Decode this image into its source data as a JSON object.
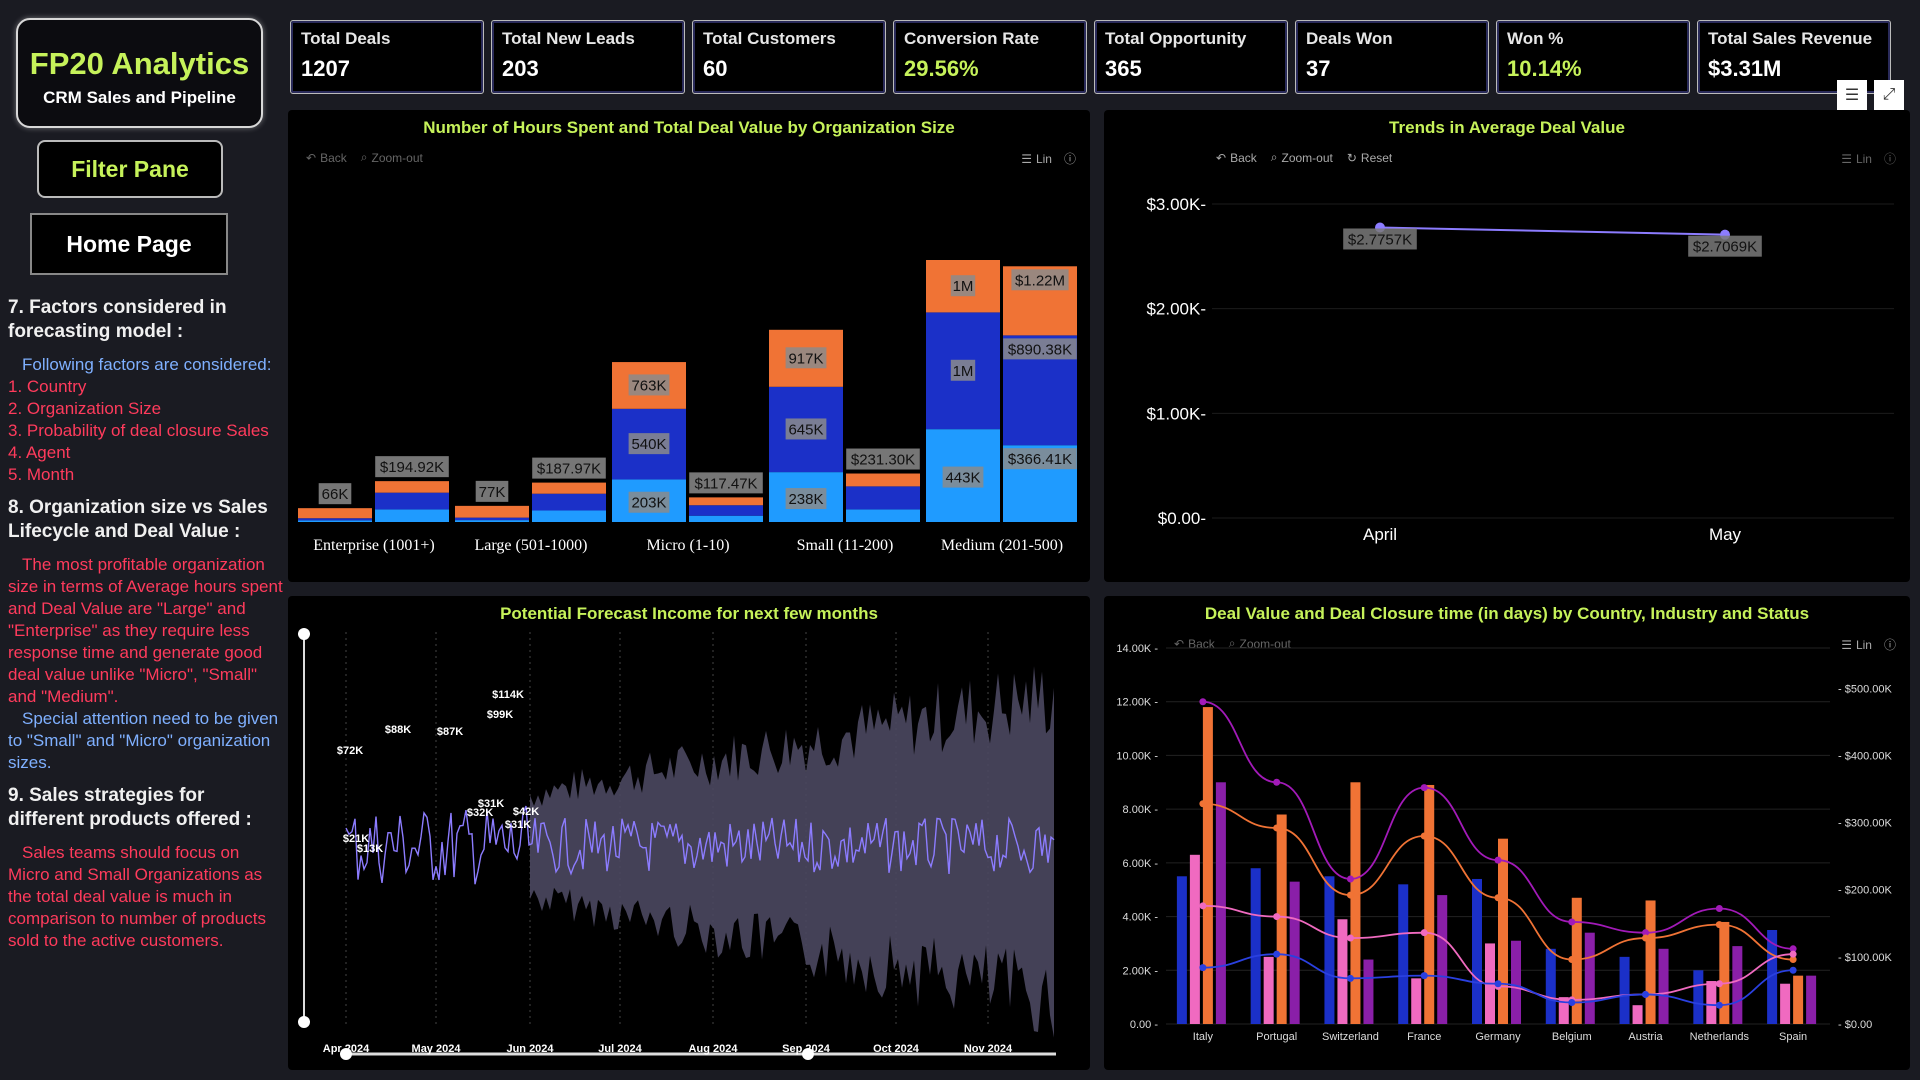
{
  "brand": {
    "title": "FP20 Analytics",
    "subtitle": "CRM Sales and Pipeline"
  },
  "nav": {
    "filter_pane": "Filter Pane",
    "home_page": "Home Page"
  },
  "notes": {
    "s7_title": "7. Factors considered in forecasting model :",
    "s7_intro": "Following factors are considered:",
    "s7_items": [
      "1. Country",
      "2. Organization Size",
      "3. Probability of deal closure Sales",
      "4. Agent",
      "5. Month"
    ],
    "s8_title": "8. Organization size vs Sales Lifecycle and Deal Value :",
    "s8_red": "The most profitable organization size in terms of Average hours spent and Deal Value are \"Large\" and \"Enterprise\" as they require less response time and generate good deal value unlike \"Micro\", \"Small\" and \"Medium\".",
    "s8_blue": "Special attention need to be given to \"Small\" and \"Micro\" organization sizes.",
    "s9_title": "9. Sales strategies for different products offered :",
    "s9_red": "Sales teams should focus on Micro and Small Organizations as the total deal value is much in comparison to number of products sold to the active customers."
  },
  "kpis": [
    {
      "label": "Total Deals",
      "value": "1207"
    },
    {
      "label": "Total New Leads",
      "value": "203"
    },
    {
      "label": "Total Customers",
      "value": "60"
    },
    {
      "label": "Conversion Rate",
      "value": "29.56%"
    },
    {
      "label": "Total Opportunity",
      "value": "365"
    },
    {
      "label": "Deals Won",
      "value": "37"
    },
    {
      "label": "Won %",
      "value": "10.14%"
    },
    {
      "label": "Total Sales Revenue",
      "value": "$3.31M"
    }
  ],
  "toolbar": {
    "back": "Back",
    "zoom_out": "Zoom-out",
    "reset": "Reset",
    "lin": "Lin"
  },
  "icons": {
    "filter": "filter-icon",
    "focus": "focus-mode-icon"
  },
  "colors": {
    "accent_green": "#c6f25a",
    "orange": "#f07335",
    "navy": "#1b30c8",
    "sky": "#1f9bff",
    "purple": "#8c7cff"
  },
  "chart_data": [
    {
      "type": "bar",
      "title": "Number of Hours Spent and Total Deal Value by Organization Size",
      "categories": [
        "Enterprise (1001+)",
        "Large (501-1000)",
        "Micro (1-10)",
        "Small (11-200)",
        "Medium (201-500)"
      ],
      "hours_totals": [
        "66K",
        "77K",
        "763K",
        "917K",
        "1M"
      ],
      "hours_segment_labels": [
        [],
        [],
        [
          "203K",
          "540K",
          "763K"
        ],
        [
          "238K",
          "645K",
          "917K"
        ],
        [
          "443K",
          "1M",
          "1M"
        ]
      ],
      "value_totals": [
        "$194.92K",
        "$187.97K",
        "$117.47K",
        "$231.30K",
        "$1.22M"
      ],
      "value_segment_labels": [
        [],
        [],
        [],
        [],
        [
          "$366.41K",
          "$890.38K",
          "$1.22M"
        ]
      ],
      "hours_stack": [
        [
          8,
          10,
          48
        ],
        [
          9,
          12,
          56
        ],
        [
          203,
          337,
          223
        ],
        [
          238,
          407,
          272
        ],
        [
          443,
          557,
          250
        ]
      ],
      "value_stack": [
        [
          60,
          80,
          54.92
        ],
        [
          55,
          80,
          52.97
        ],
        [
          30,
          50,
          37.47
        ],
        [
          60,
          110,
          61.3
        ],
        [
          366.41,
          523.97,
          329.62
        ]
      ],
      "series": [
        {
          "name": "Segment 1",
          "color": "#1f9bff"
        },
        {
          "name": "Segment 2",
          "color": "#1b30c8"
        },
        {
          "name": "Segment 3",
          "color": "#f07335"
        }
      ]
    },
    {
      "type": "line",
      "title": "Trends in Average Deal Value",
      "x": [
        "April",
        "May"
      ],
      "values": [
        2775.7,
        2706.9
      ],
      "labels": [
        "$2.7757K",
        "$2.7069K"
      ],
      "yticks": [
        "$0.00",
        "$1.00K",
        "$2.00K",
        "$3.00K"
      ],
      "ylim": [
        0,
        3000
      ]
    },
    {
      "type": "area",
      "title": "Potential Forecast Income for next few months",
      "xticks": [
        "Apr 2024",
        "May 2024",
        "Jun 2024",
        "Jul 2024",
        "Aug 2024",
        "Sep 2024",
        "Oct 2024",
        "Nov 2024"
      ],
      "annotations": [
        "$72K",
        "$21K",
        "$13K",
        "$88K",
        "$87K",
        "$32K",
        "$31K",
        "$99K",
        "$114K",
        "$42K",
        "$31K"
      ]
    },
    {
      "type": "bar",
      "title": "Deal Value and Deal Closure time (in days) by Country, Industry and Status",
      "categories": [
        "Italy",
        "Portugal",
        "Switzerland",
        "France",
        "Germany",
        "Belgium",
        "Austria",
        "Netherlands",
        "Spain"
      ],
      "yticks_left": [
        "0.00",
        "2.00K",
        "4.00K",
        "6.00K",
        "8.00K",
        "10.00K",
        "12.00K",
        "14.00K"
      ],
      "yticks_right": [
        "$0.00",
        "$100.00K",
        "$200.00K",
        "$300.00K",
        "$400.00K",
        "$500.00K"
      ],
      "series": [
        {
          "color": "#1b30c8",
          "values": [
            5.5,
            5.8,
            5.5,
            5.2,
            5.4,
            2.8,
            2.5,
            2.0,
            3.5
          ]
        },
        {
          "color": "#f06ac0",
          "values": [
            6.3,
            2.5,
            3.9,
            1.7,
            3.0,
            1.0,
            0.7,
            1.6,
            1.5
          ]
        },
        {
          "color": "#f07335",
          "values": [
            11.8,
            7.8,
            9.0,
            8.9,
            6.9,
            4.7,
            4.6,
            3.8,
            1.8
          ]
        },
        {
          "color": "#8a1fa8",
          "values": [
            9.0,
            5.3,
            2.4,
            4.8,
            3.1,
            3.4,
            2.8,
            2.9,
            1.8
          ]
        }
      ],
      "lines": [
        {
          "color": "#a21ab8",
          "values": [
            12.0,
            9.0,
            5.4,
            8.8,
            6.1,
            3.8,
            3.4,
            4.3,
            2.8
          ]
        },
        {
          "color": "#f07335",
          "values": [
            8.2,
            7.3,
            4.8,
            7.0,
            4.7,
            2.4,
            3.2,
            3.7,
            2.4
          ]
        },
        {
          "color": "#f06ac0",
          "values": [
            4.4,
            4.0,
            3.2,
            3.4,
            1.4,
            0.9,
            1.1,
            1.5,
            2.6
          ]
        },
        {
          "color": "#2a40e0",
          "values": [
            2.1,
            2.6,
            1.7,
            1.8,
            1.5,
            0.8,
            1.1,
            0.7,
            2.0
          ]
        }
      ]
    }
  ]
}
